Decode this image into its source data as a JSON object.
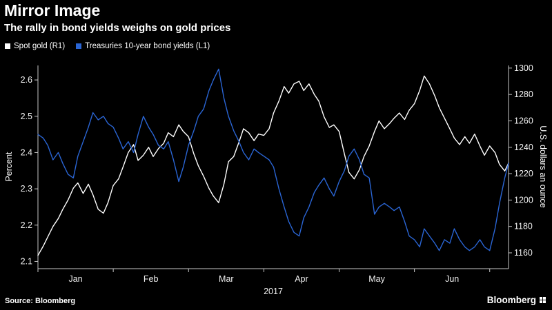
{
  "footer": {
    "source": "Source: Bloomberg",
    "brand": "Bloomberg"
  },
  "chart_data": {
    "type": "line",
    "title": "Mirror Image",
    "subtitle": "The rally in bond yields weighs on gold prices",
    "x_year_label": "2017",
    "x_range": [
      0,
      6.25
    ],
    "x_month_bounds": [
      0,
      1,
      2,
      3,
      4,
      5,
      6
    ],
    "x_ticks": [
      {
        "label": "Jan",
        "center": 0.5
      },
      {
        "label": "Feb",
        "center": 1.5
      },
      {
        "label": "Mar",
        "center": 2.5
      },
      {
        "label": "Apr",
        "center": 3.5
      },
      {
        "label": "May",
        "center": 4.5
      },
      {
        "label": "Jun",
        "center": 5.5
      }
    ],
    "axes": {
      "left": {
        "label": "Percent",
        "ticks": [
          2.1,
          2.2,
          2.3,
          2.4,
          2.5,
          2.6
        ],
        "range": [
          2.08,
          2.64
        ]
      },
      "right": {
        "label": "U.S. dollars an ounce",
        "ticks": [
          1160,
          1180,
          1200,
          1220,
          1240,
          1260,
          1280,
          1300
        ],
        "range": [
          1148,
          1302
        ]
      }
    },
    "legend_position": "top-left",
    "grid": false,
    "series": [
      {
        "id": "spot-gold",
        "name": "Spot gold (R1)",
        "axis": "right",
        "color": "#ffffff",
        "points": [
          [
            0.0,
            1158
          ],
          [
            0.07,
            1165
          ],
          [
            0.13,
            1172
          ],
          [
            0.2,
            1180
          ],
          [
            0.27,
            1186
          ],
          [
            0.33,
            1193
          ],
          [
            0.4,
            1200
          ],
          [
            0.47,
            1209
          ],
          [
            0.53,
            1213
          ],
          [
            0.6,
            1205
          ],
          [
            0.67,
            1212
          ],
          [
            0.73,
            1204
          ],
          [
            0.8,
            1193
          ],
          [
            0.87,
            1190
          ],
          [
            0.93,
            1198
          ],
          [
            1.0,
            1211
          ],
          [
            1.07,
            1216
          ],
          [
            1.13,
            1225
          ],
          [
            1.2,
            1236
          ],
          [
            1.27,
            1242
          ],
          [
            1.33,
            1230
          ],
          [
            1.4,
            1234
          ],
          [
            1.47,
            1240
          ],
          [
            1.53,
            1233
          ],
          [
            1.6,
            1239
          ],
          [
            1.67,
            1243
          ],
          [
            1.73,
            1251
          ],
          [
            1.8,
            1248
          ],
          [
            1.87,
            1257
          ],
          [
            1.93,
            1252
          ],
          [
            2.0,
            1248
          ],
          [
            2.07,
            1235
          ],
          [
            2.13,
            1226
          ],
          [
            2.2,
            1218
          ],
          [
            2.27,
            1209
          ],
          [
            2.33,
            1203
          ],
          [
            2.4,
            1198
          ],
          [
            2.47,
            1212
          ],
          [
            2.53,
            1229
          ],
          [
            2.6,
            1233
          ],
          [
            2.67,
            1244
          ],
          [
            2.73,
            1254
          ],
          [
            2.8,
            1251
          ],
          [
            2.87,
            1245
          ],
          [
            2.93,
            1250
          ],
          [
            3.0,
            1249
          ],
          [
            3.07,
            1254
          ],
          [
            3.13,
            1266
          ],
          [
            3.2,
            1275
          ],
          [
            3.27,
            1286
          ],
          [
            3.33,
            1281
          ],
          [
            3.4,
            1288
          ],
          [
            3.47,
            1290
          ],
          [
            3.53,
            1283
          ],
          [
            3.6,
            1288
          ],
          [
            3.67,
            1280
          ],
          [
            3.73,
            1275
          ],
          [
            3.8,
            1263
          ],
          [
            3.87,
            1255
          ],
          [
            3.93,
            1257
          ],
          [
            4.0,
            1252
          ],
          [
            4.07,
            1235
          ],
          [
            4.13,
            1221
          ],
          [
            4.2,
            1216
          ],
          [
            4.27,
            1223
          ],
          [
            4.33,
            1233
          ],
          [
            4.4,
            1241
          ],
          [
            4.47,
            1252
          ],
          [
            4.53,
            1260
          ],
          [
            4.6,
            1254
          ],
          [
            4.67,
            1258
          ],
          [
            4.73,
            1262
          ],
          [
            4.8,
            1266
          ],
          [
            4.87,
            1261
          ],
          [
            4.93,
            1268
          ],
          [
            5.0,
            1273
          ],
          [
            5.07,
            1283
          ],
          [
            5.13,
            1294
          ],
          [
            5.2,
            1288
          ],
          [
            5.27,
            1279
          ],
          [
            5.33,
            1270
          ],
          [
            5.4,
            1262
          ],
          [
            5.47,
            1254
          ],
          [
            5.53,
            1247
          ],
          [
            5.6,
            1242
          ],
          [
            5.67,
            1248
          ],
          [
            5.73,
            1243
          ],
          [
            5.8,
            1250
          ],
          [
            5.87,
            1241
          ],
          [
            5.93,
            1234
          ],
          [
            6.0,
            1241
          ],
          [
            6.07,
            1236
          ],
          [
            6.13,
            1227
          ],
          [
            6.2,
            1222
          ],
          [
            6.25,
            1228
          ]
        ]
      },
      {
        "id": "treasury-10y-yield",
        "name": "Treasuries 10-year bond yields (L1)",
        "axis": "left",
        "color": "#2a65d4",
        "points": [
          [
            0.0,
            2.45
          ],
          [
            0.07,
            2.44
          ],
          [
            0.13,
            2.42
          ],
          [
            0.2,
            2.38
          ],
          [
            0.27,
            2.4
          ],
          [
            0.33,
            2.37
          ],
          [
            0.4,
            2.34
          ],
          [
            0.47,
            2.33
          ],
          [
            0.53,
            2.39
          ],
          [
            0.6,
            2.43
          ],
          [
            0.67,
            2.47
          ],
          [
            0.73,
            2.51
          ],
          [
            0.8,
            2.49
          ],
          [
            0.87,
            2.5
          ],
          [
            0.93,
            2.48
          ],
          [
            1.0,
            2.47
          ],
          [
            1.07,
            2.44
          ],
          [
            1.13,
            2.41
          ],
          [
            1.2,
            2.43
          ],
          [
            1.27,
            2.4
          ],
          [
            1.33,
            2.45
          ],
          [
            1.4,
            2.5
          ],
          [
            1.47,
            2.47
          ],
          [
            1.53,
            2.45
          ],
          [
            1.6,
            2.42
          ],
          [
            1.67,
            2.41
          ],
          [
            1.73,
            2.43
          ],
          [
            1.8,
            2.38
          ],
          [
            1.87,
            2.32
          ],
          [
            1.93,
            2.36
          ],
          [
            2.0,
            2.42
          ],
          [
            2.07,
            2.46
          ],
          [
            2.13,
            2.5
          ],
          [
            2.2,
            2.52
          ],
          [
            2.27,
            2.57
          ],
          [
            2.33,
            2.6
          ],
          [
            2.4,
            2.63
          ],
          [
            2.47,
            2.55
          ],
          [
            2.53,
            2.5
          ],
          [
            2.6,
            2.46
          ],
          [
            2.67,
            2.43
          ],
          [
            2.73,
            2.4
          ],
          [
            2.8,
            2.38
          ],
          [
            2.87,
            2.41
          ],
          [
            2.93,
            2.4
          ],
          [
            3.0,
            2.39
          ],
          [
            3.07,
            2.38
          ],
          [
            3.13,
            2.36
          ],
          [
            3.2,
            2.3
          ],
          [
            3.27,
            2.25
          ],
          [
            3.33,
            2.21
          ],
          [
            3.4,
            2.18
          ],
          [
            3.47,
            2.17
          ],
          [
            3.53,
            2.22
          ],
          [
            3.6,
            2.25
          ],
          [
            3.67,
            2.29
          ],
          [
            3.73,
            2.31
          ],
          [
            3.8,
            2.33
          ],
          [
            3.87,
            2.3
          ],
          [
            3.93,
            2.28
          ],
          [
            4.0,
            2.32
          ],
          [
            4.07,
            2.35
          ],
          [
            4.13,
            2.39
          ],
          [
            4.2,
            2.41
          ],
          [
            4.27,
            2.38
          ],
          [
            4.33,
            2.34
          ],
          [
            4.4,
            2.33
          ],
          [
            4.47,
            2.23
          ],
          [
            4.53,
            2.25
          ],
          [
            4.6,
            2.26
          ],
          [
            4.67,
            2.25
          ],
          [
            4.73,
            2.24
          ],
          [
            4.8,
            2.25
          ],
          [
            4.87,
            2.21
          ],
          [
            4.93,
            2.17
          ],
          [
            5.0,
            2.16
          ],
          [
            5.07,
            2.14
          ],
          [
            5.13,
            2.19
          ],
          [
            5.2,
            2.17
          ],
          [
            5.27,
            2.15
          ],
          [
            5.33,
            2.13
          ],
          [
            5.4,
            2.16
          ],
          [
            5.47,
            2.15
          ],
          [
            5.53,
            2.19
          ],
          [
            5.6,
            2.16
          ],
          [
            5.67,
            2.14
          ],
          [
            5.73,
            2.13
          ],
          [
            5.8,
            2.14
          ],
          [
            5.87,
            2.16
          ],
          [
            5.93,
            2.14
          ],
          [
            6.0,
            2.13
          ],
          [
            6.07,
            2.19
          ],
          [
            6.13,
            2.26
          ],
          [
            6.2,
            2.33
          ],
          [
            6.25,
            2.37
          ]
        ]
      }
    ]
  }
}
